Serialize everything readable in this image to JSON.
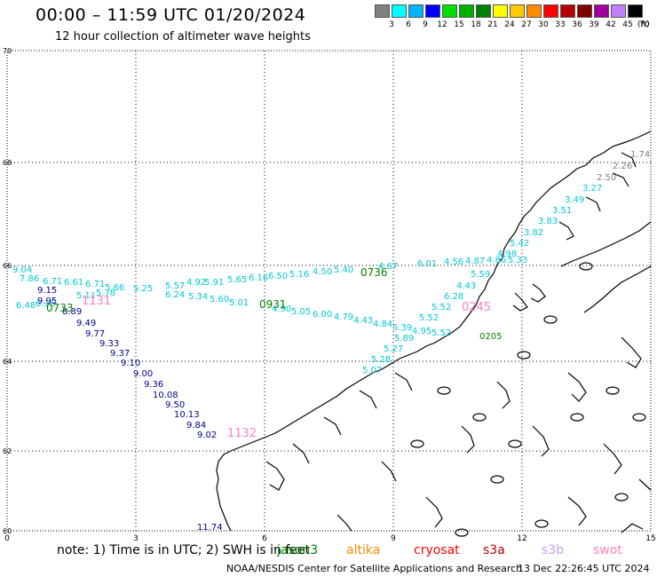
{
  "title": "00:00 – 11:59 UTC 01/20/2024",
  "subtitle": "12 hour collection of altimeter wave heights",
  "legend": {
    "unit": "(ft)",
    "levels": [
      "3",
      "6",
      "9",
      "12",
      "15",
      "18",
      "21",
      "24",
      "27",
      "30",
      "33",
      "36",
      "39",
      "42",
      "45",
      "70"
    ],
    "colors": [
      "#808080",
      "#00ffff",
      "#00b4ff",
      "#0000ff",
      "#00e000",
      "#00b000",
      "#008000",
      "#ffff00",
      "#ffc800",
      "#ff8c00",
      "#ff0000",
      "#b40000",
      "#800000",
      "#a000a0",
      "#c080ff",
      "#000000"
    ]
  },
  "axes": {
    "x_ticks": [
      "0",
      "3",
      "6",
      "9",
      "12",
      "15"
    ],
    "y_ticks": [
      "70",
      "68",
      "66",
      "64",
      "62",
      "60"
    ]
  },
  "note": "note: 1) Time is in UTC; 2) SWH is in feet",
  "satellites": [
    {
      "name": "jason3",
      "color": "#008000"
    },
    {
      "name": "altika",
      "color": "#ff8c00"
    },
    {
      "name": "cryosat",
      "color": "#ff0000"
    },
    {
      "name": "s3a",
      "color": "#b40000"
    },
    {
      "name": "s3b",
      "color": "#c0a0ff"
    },
    {
      "name": "swot",
      "color": "#ff80c0"
    }
  ],
  "credit": "NOAA/NESDIS Center for Satellite Applications and Research",
  "generated": "13 Dec 22:26:45 UTC 2024",
  "tracks": {
    "upper_cyan": {
      "color": "#00c8d8",
      "labels": [
        "9.04",
        "7.86",
        "6.71",
        "6.61",
        "6.71",
        "5.66",
        "5.25",
        "5.57",
        "4.92",
        "5.91",
        "5.65",
        "6.16",
        "6.50",
        "5.16",
        "4.50",
        "5.40",
        "4.67",
        "6.01",
        "4.56",
        "4.87",
        "4.86",
        "5.33",
        "5.59",
        "4.43",
        "6.28",
        "5.52",
        "5.52",
        "5.89",
        "5.27",
        "5.28",
        "5.07"
      ],
      "time": "0736",
      "time_color": "#008000"
    },
    "lower_cyan": {
      "color": "#00c8d8",
      "labels": [
        "6.48",
        "6.16",
        "5.11",
        "5.78",
        "6.24",
        "5.34",
        "5.60",
        "5.01",
        "4.90",
        "5.05",
        "6.00",
        "4.79",
        "4.43",
        "4.84",
        "5.39",
        "4.95",
        "5.52"
      ],
      "time": "0931",
      "time_color": "#008000"
    },
    "navy": {
      "color": "#00008b",
      "labels": [
        "9.15",
        "9.95",
        "8.89",
        "9.49",
        "9.77",
        "9.33",
        "9.37",
        "9.10",
        "9.00",
        "9.36",
        "10.08",
        "9.50",
        "10.13",
        "9.84",
        "9.02"
      ],
      "time": "0733",
      "time_color": "#008000"
    },
    "grey": {
      "color": "#808080",
      "labels": [
        "1.74",
        "2.26",
        "2.50"
      ]
    },
    "coast_track": {
      "color": "#00c8d8",
      "labels": [
        "3.27",
        "3.49",
        "3.51",
        "3.83",
        "3.82",
        "5.42",
        "4.98"
      ]
    },
    "south_navy": {
      "color": "#00008b",
      "labels": [
        "11.74"
      ]
    },
    "swot_times": {
      "color": "#ff80c0",
      "labels": [
        "1131",
        "0245",
        "1132"
      ]
    },
    "green_time": {
      "color": "#008000",
      "labels": [
        "0205"
      ]
    }
  }
}
